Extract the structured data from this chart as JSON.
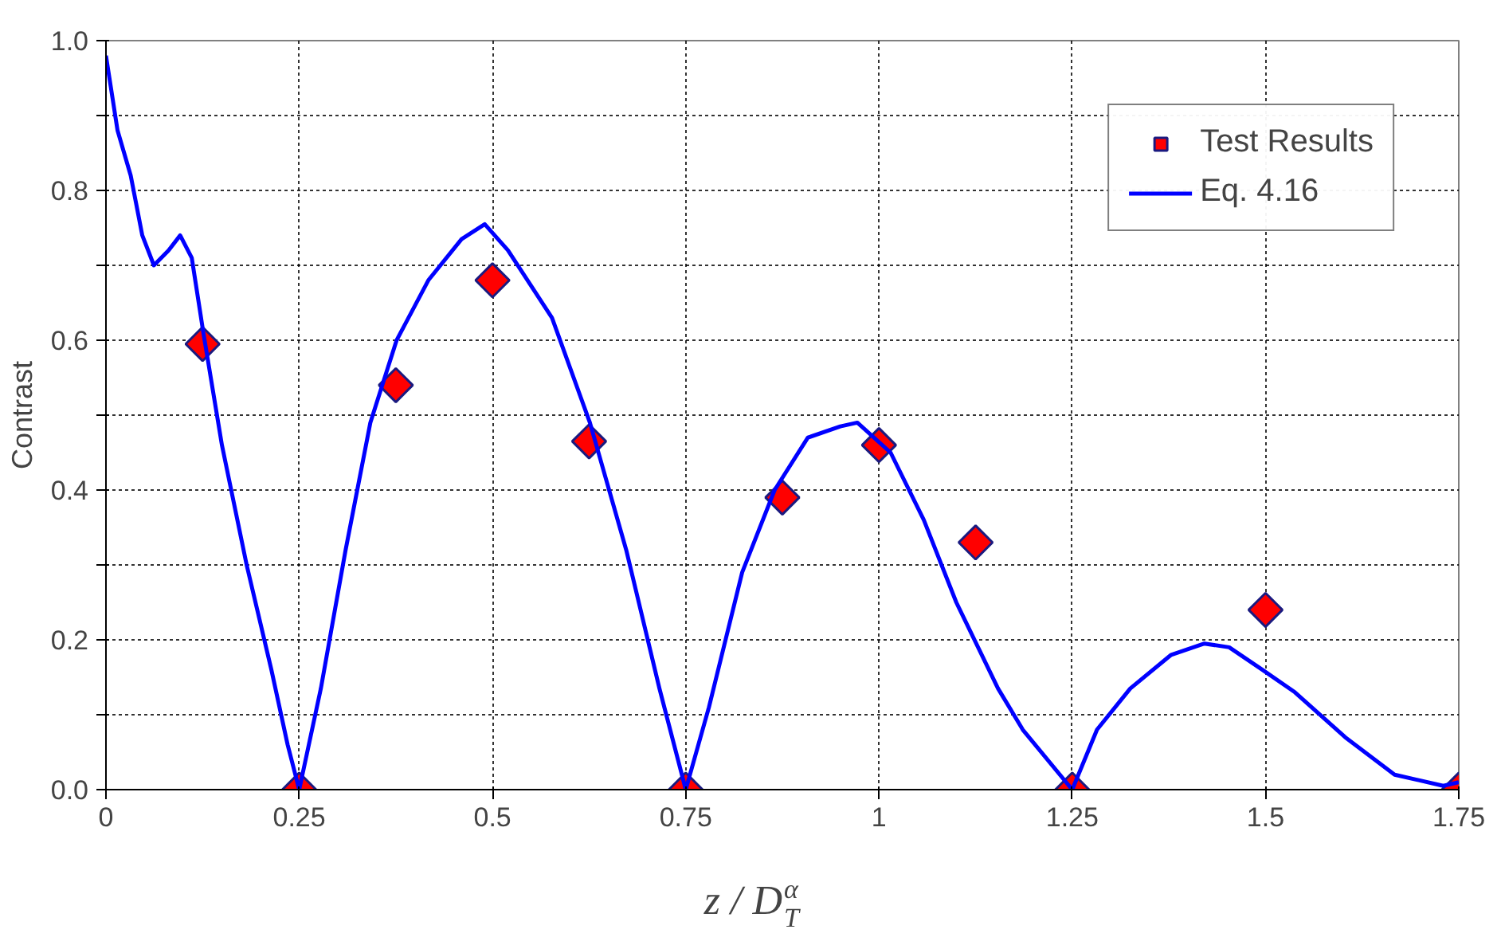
{
  "chart_data": {
    "type": "line",
    "xlabel": "z / D$_{T}$$^{α}$",
    "ylabel": "Contrast",
    "xlim": [
      0,
      1.75
    ],
    "xticks": [
      0,
      0.25,
      0.5,
      0.75,
      1,
      1.25,
      1.5,
      1.75
    ],
    "ylim": [
      0,
      1
    ],
    "yticks": [
      {
        "value": 0,
        "label": "0.0"
      },
      {
        "value": 0.1,
        "label": null
      },
      {
        "value": 0.2,
        "label": "0.2"
      },
      {
        "value": 0.3,
        "label": null
      },
      {
        "value": 0.4,
        "label": "0.4"
      },
      {
        "value": 0.5,
        "label": null
      },
      {
        "value": 0.6,
        "label": "0.6"
      },
      {
        "value": 0.7,
        "label": null
      },
      {
        "value": 0.8,
        "label": "0.8"
      },
      {
        "value": 0.9,
        "label": null
      },
      {
        "value": 1,
        "label": "1.0"
      }
    ],
    "grid": true,
    "legend": "top right",
    "series": [
      {
        "name": "Test Results",
        "type": "scatter",
        "marker": "diamond",
        "color": "#ff0000",
        "x": [
          0.125,
          0.25,
          0.375,
          0.5,
          0.625,
          0.75,
          0.875,
          1.0,
          1.125,
          1.25,
          1.5,
          1.75
        ],
        "values": [
          0.595,
          0,
          0.54,
          0.68,
          0.465,
          0,
          0.39,
          0.46,
          0.33,
          0,
          0.24,
          0
        ]
      },
      {
        "name": "Eq. 4.16",
        "type": "line",
        "color": "#0000ff",
        "x": [
          0,
          0.015,
          0.032,
          0.047,
          0.062,
          0.081,
          0.096,
          0.111,
          0.126,
          0.15,
          0.182,
          0.214,
          0.235,
          0.25,
          0.278,
          0.31,
          0.342,
          0.376,
          0.417,
          0.46,
          0.49,
          0.52,
          0.577,
          0.626,
          0.673,
          0.716,
          0.75,
          0.78,
          0.823,
          0.865,
          0.908,
          0.95,
          0.972,
          1.015,
          1.058,
          1.1,
          1.154,
          1.186,
          1.25,
          1.282,
          1.325,
          1.378,
          1.421,
          1.453,
          1.496,
          1.538,
          1.603,
          1.667,
          1.73,
          1.75
        ],
        "values": [
          0.98,
          0.88,
          0.82,
          0.74,
          0.7,
          0.72,
          0.74,
          0.71,
          0.61,
          0.46,
          0.3,
          0.16,
          0.06,
          0,
          0.135,
          0.32,
          0.49,
          0.6,
          0.68,
          0.735,
          0.755,
          0.72,
          0.63,
          0.49,
          0.32,
          0.135,
          0,
          0.11,
          0.29,
          0.4,
          0.47,
          0.485,
          0.49,
          0.45,
          0.36,
          0.25,
          0.135,
          0.08,
          0,
          0.08,
          0.135,
          0.18,
          0.195,
          0.19,
          0.16,
          0.13,
          0.07,
          0.02,
          0.005,
          0.01
        ]
      }
    ]
  }
}
